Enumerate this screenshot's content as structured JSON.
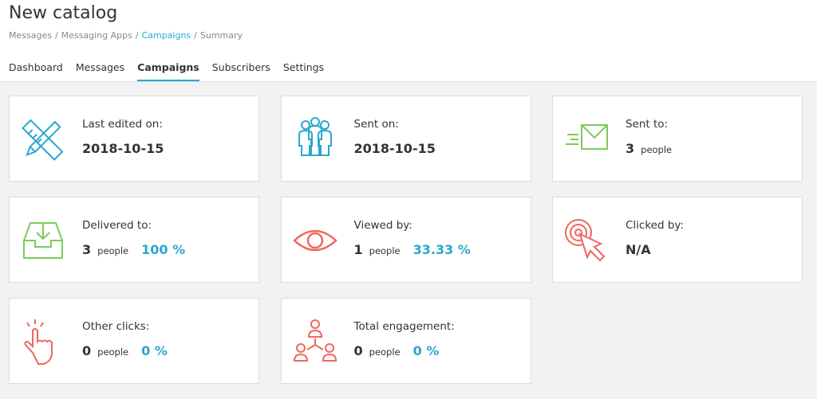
{
  "header": {
    "title": "New catalog",
    "separator": "/",
    "breadcrumbs": [
      "Messages",
      "Messaging Apps",
      "Campaigns",
      "Summary"
    ]
  },
  "tabs": [
    "Dashboard",
    "Messages",
    "Campaigns",
    "Subscribers",
    "Settings"
  ],
  "cards": [
    {
      "label": "Last edited on:",
      "value": "2018-10-15"
    },
    {
      "label": "Sent on:",
      "value": "2018-10-15"
    },
    {
      "label": "Sent to:",
      "value": "3",
      "unit": "people"
    },
    {
      "label": "Delivered to:",
      "value": "3",
      "unit": "people",
      "percent": "100 %"
    },
    {
      "label": "Viewed by:",
      "value": "1",
      "unit": "people",
      "percent": "33.33 %"
    },
    {
      "label": "Clicked by:",
      "value": "N/A"
    },
    {
      "label": "Other clicks:",
      "value": "0",
      "unit": "people",
      "percent": "0 %"
    },
    {
      "label": "Total engagement:",
      "value": "0",
      "unit": "people",
      "percent": "0 %"
    }
  ]
}
